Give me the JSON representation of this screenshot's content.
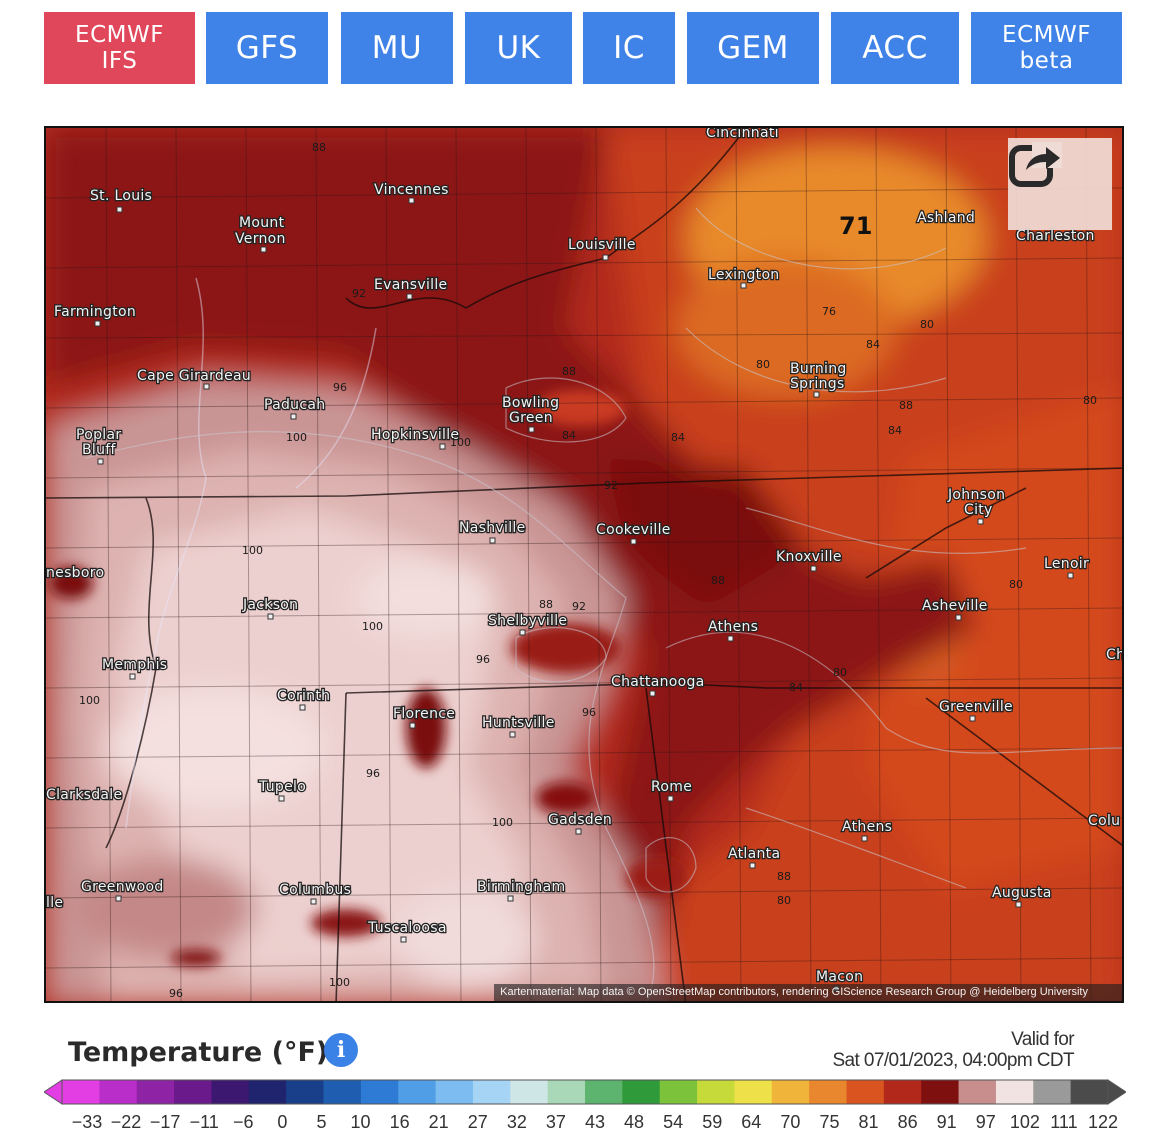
{
  "tabs": [
    {
      "label_1": "ECMWF",
      "label_2": "IFS",
      "active": true
    },
    {
      "label_1": "GFS",
      "active": false
    },
    {
      "label_1": "MU",
      "active": false
    },
    {
      "label_1": "UK",
      "active": false
    },
    {
      "label_1": "IC",
      "active": false
    },
    {
      "label_1": "GEM",
      "active": false
    },
    {
      "label_1": "ACC",
      "active": false
    },
    {
      "label_1": "ECMWF",
      "label_2": "beta",
      "active": false
    }
  ],
  "map": {
    "cities": [
      "Cincinnati",
      "St. Louis",
      "Vincennes",
      "Mount",
      "Vernon",
      "Ashland",
      "Charleston",
      "Louisville",
      "Evansville",
      "Lexington",
      "Farmington",
      "Cape Girardeau",
      "Paducah",
      "Burning",
      "Springs",
      "Bowling",
      "Green",
      "Hopkinsville",
      "Poplar",
      "Bluff",
      "Johnson",
      "City",
      "Nashville",
      "Cookeville",
      "Knoxville",
      "Lenoir",
      "nesboro",
      "Jackson",
      "Shelbyville",
      "Athens",
      "Asheville",
      "Memphis",
      "Chattanooga",
      "Corinth",
      "Florence",
      "Huntsville",
      "Greenville",
      "Tupelo",
      "Rome",
      "Clarksdale",
      "Gadsden",
      "Athens",
      "Atlanta",
      "Colu",
      "Greenwood",
      "Columbus",
      "Birmingham",
      "Augusta",
      "Tuscaloosa",
      "Macon",
      "Ch",
      "lle"
    ],
    "contour_labels": [
      "88",
      "92",
      "96",
      "100",
      "100",
      "100",
      "88",
      "84",
      "76",
      "80",
      "80",
      "84",
      "88",
      "84",
      "80",
      "92",
      "88",
      "92",
      "88",
      "96",
      "100",
      "96",
      "100",
      "96",
      "84",
      "80",
      "88",
      "80",
      "100",
      "96",
      "100",
      "84",
      "80"
    ],
    "highlight_value": "71",
    "attribution": "Kartenmaterial: Map data © OpenStreetMap contributors, rendering GIScience Research Group @ Heidelberg University",
    "colors": {
      "hot_dark": "#8f1212",
      "hot": "#b8301f",
      "warm": "#d9521f",
      "mild": "#e98a2e",
      "very_hot_pink": "#e7b3b0",
      "extreme": "#f4dcda"
    }
  },
  "legend": {
    "title": "Temperature (°F)",
    "valid_for_line1": "Valid for",
    "valid_for_line2": "Sat 07/01/2023, 04:00pm CDT",
    "ticks": [
      "−33",
      "−22",
      "−17",
      "−11",
      "−6",
      "0",
      "5",
      "10",
      "16",
      "21",
      "27",
      "32",
      "37",
      "43",
      "48",
      "54",
      "59",
      "64",
      "70",
      "75",
      "81",
      "86",
      "91",
      "97",
      "102",
      "111",
      "122"
    ],
    "colors": [
      "#e23ee3",
      "#b92ec8",
      "#8f23a6",
      "#6a1a8a",
      "#3d1870",
      "#20246e",
      "#1a3f8a",
      "#1e5db0",
      "#2d7bd4",
      "#4f9ee6",
      "#7cbcf0",
      "#a6d4f4",
      "#cfe6e6",
      "#a9d8b8",
      "#5cb46e",
      "#2f9a3a",
      "#7cc23a",
      "#c6da3a",
      "#ede048",
      "#f0b43a",
      "#e8872e",
      "#d9541f",
      "#b2281b",
      "#7f1010",
      "#c88d8d",
      "#f2e3e3",
      "#9a9a9a",
      "#4b4b4b"
    ]
  }
}
